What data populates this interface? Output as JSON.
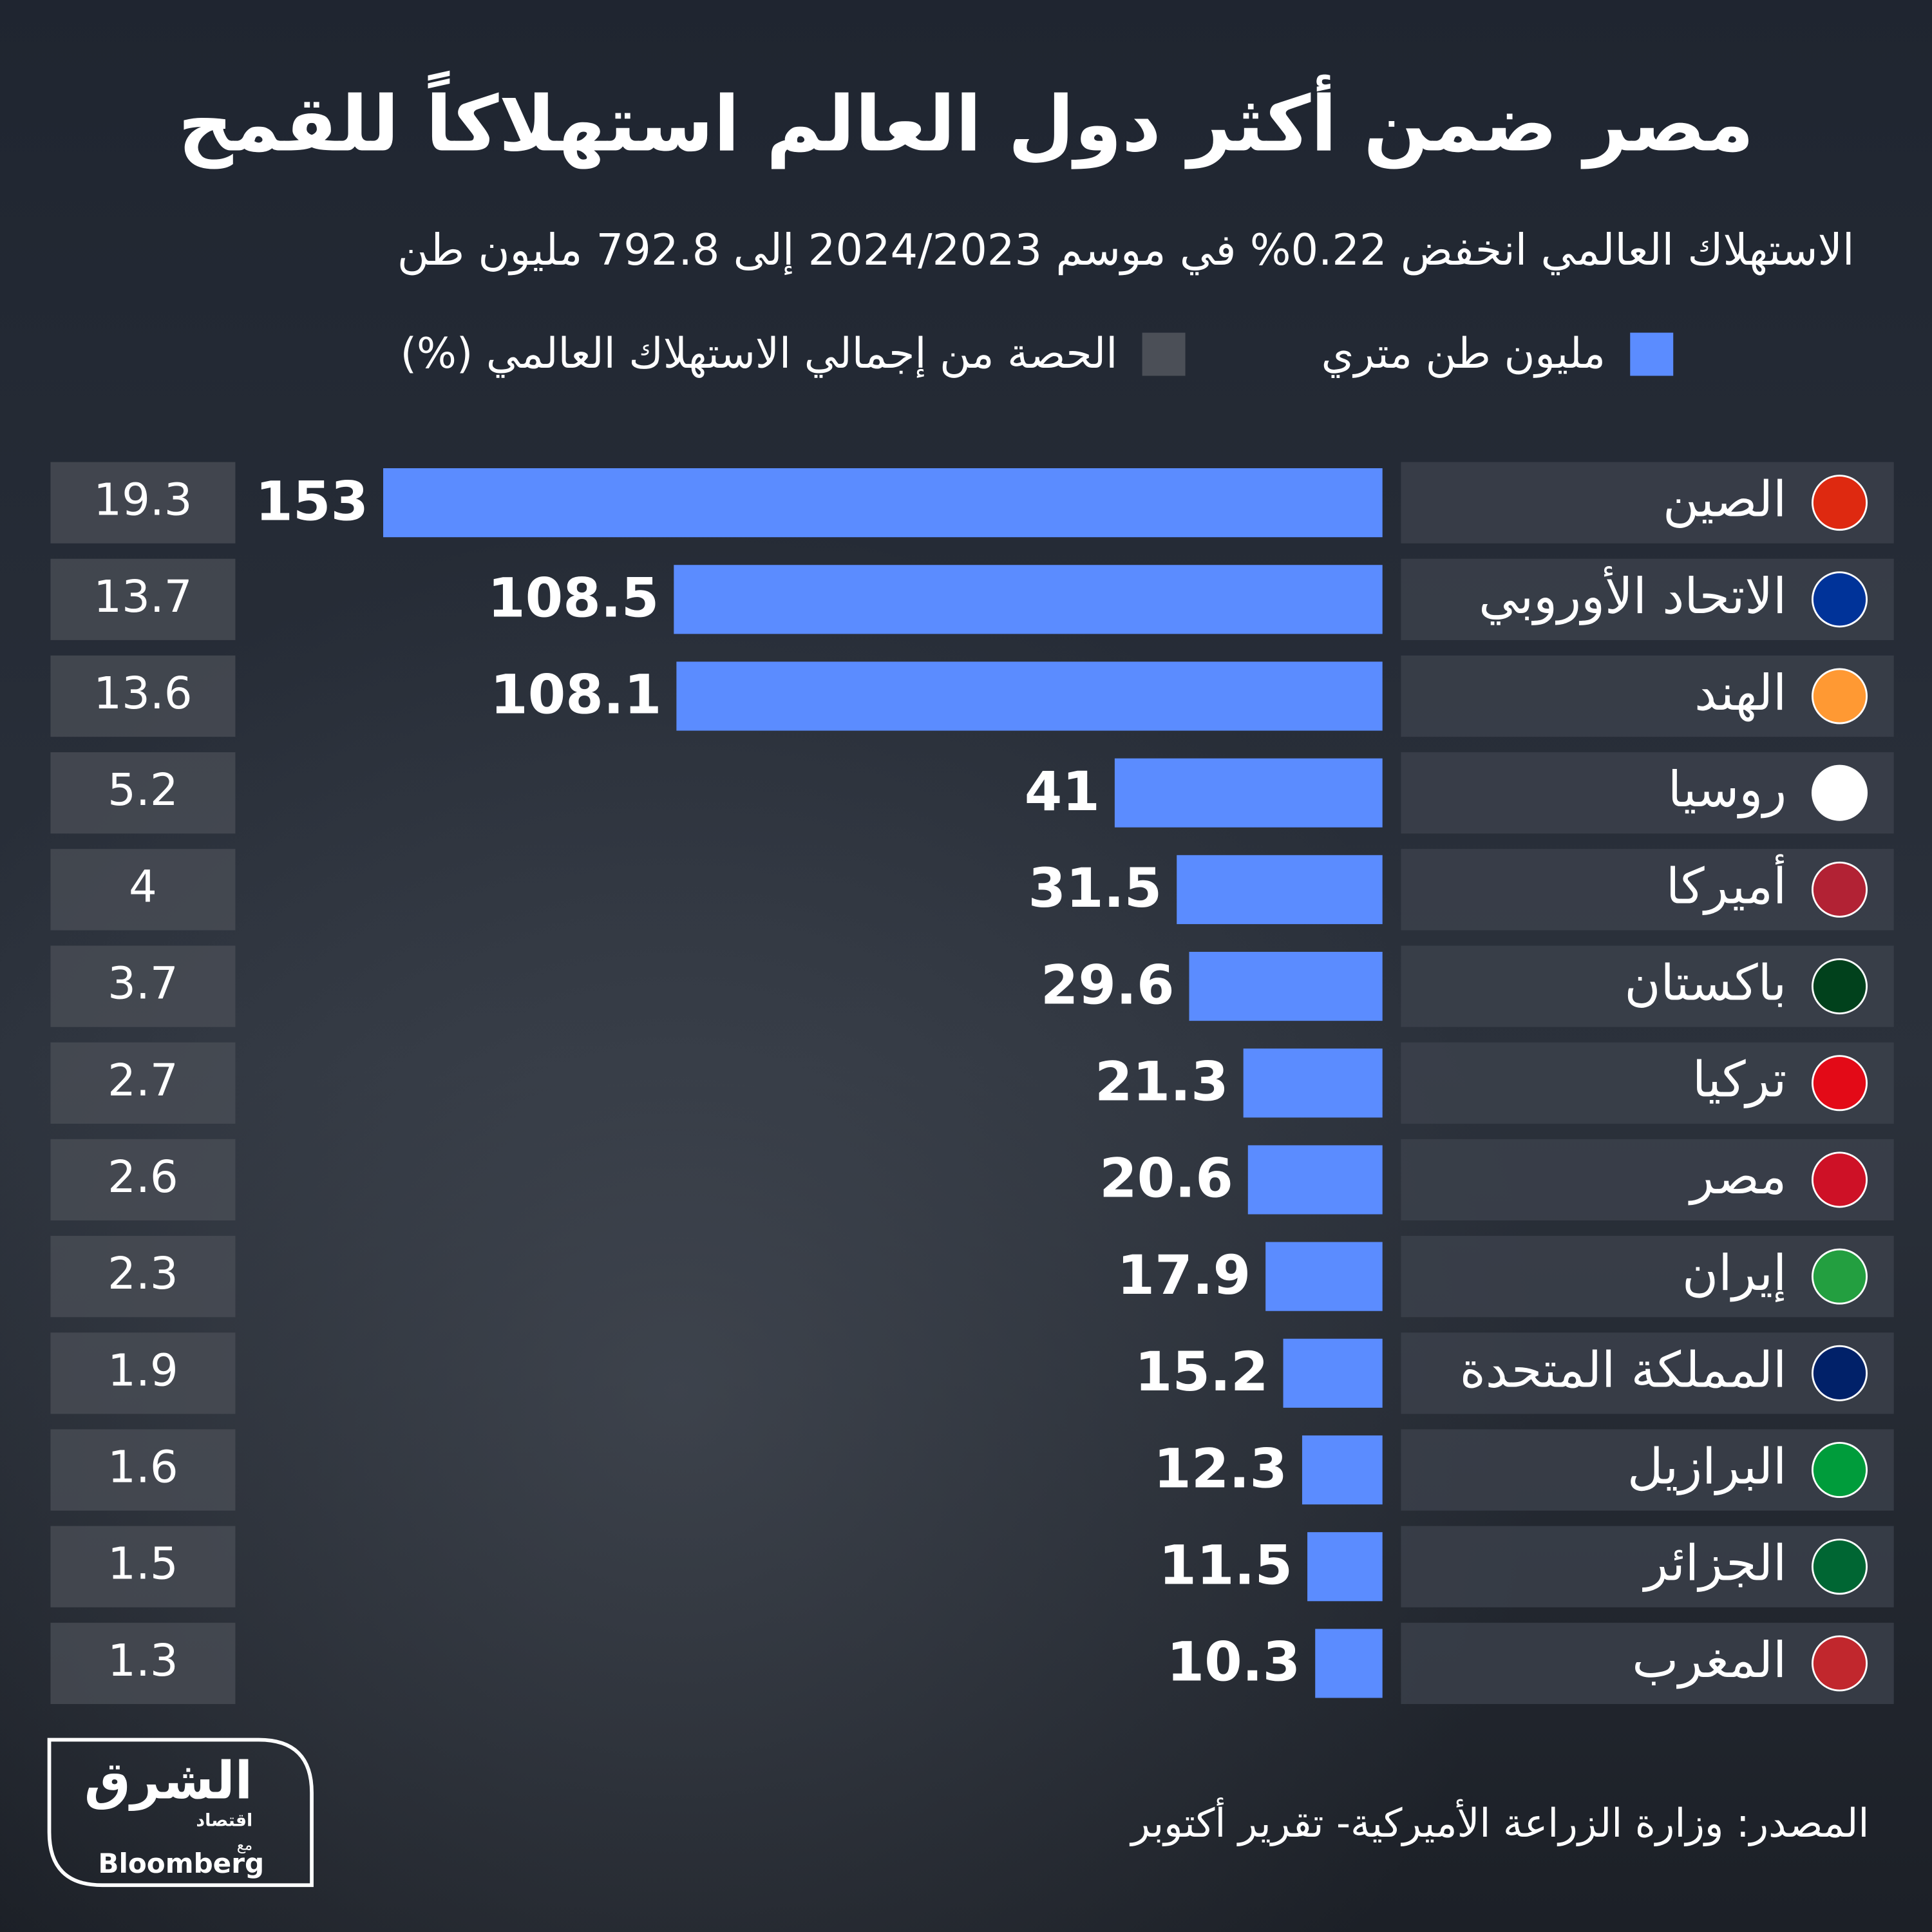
{
  "chart_data": {
    "type": "bar",
    "orientation": "horizontal",
    "title": "مصر ضمن أكثر دول العالم استهلاكاً للقمح",
    "subtitle": "الاستهلاك العالمي انخفض 0.22% في موسم 2024/2023 إلى 792.8 مليون طن",
    "categories": [
      "الصين",
      "الاتحاد الأوروبي",
      "الهند",
      "روسيا",
      "أميركا",
      "باكستان",
      "تركيا",
      "مصر",
      "إيران",
      "المملكة المتحدة",
      "البرازيل",
      "الجزائر",
      "المغرب"
    ],
    "series": [
      {
        "name": "مليون طن متري",
        "color": "#5b8cff",
        "values": [
          153,
          108.5,
          108.1,
          41,
          31.5,
          29.6,
          21.3,
          20.6,
          17.9,
          15.2,
          12.3,
          11.5,
          10.3
        ]
      },
      {
        "name": "الحصة من إجمالي الاستهلاك العالمي (%)",
        "color": "#4b4f57",
        "values": [
          19.3,
          13.7,
          13.6,
          5.2,
          4,
          3.7,
          2.7,
          2.6,
          2.3,
          1.9,
          1.6,
          1.5,
          1.3
        ]
      }
    ],
    "source": "المصدر: وزارة الزراعة الأميركية- تقرير أكتوبر",
    "logo": {
      "brand": "الشرق",
      "sub": "اقتصاد",
      "with": "مع",
      "partner": "Bloomberg"
    }
  }
}
